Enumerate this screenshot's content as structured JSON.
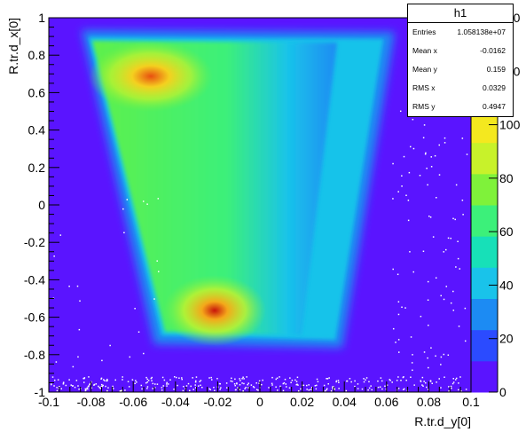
{
  "chart_data": {
    "type": "heatmap",
    "title": "",
    "xlabel": "R.tr.d_y[0]",
    "ylabel": "R.tr.d_x[0]",
    "xlim": [
      -0.1,
      0.1
    ],
    "ylim": [
      -1,
      1
    ],
    "zlim": [
      0,
      140
    ],
    "x_ticks": [
      "-0.1",
      "-0.08",
      "-0.06",
      "-0.04",
      "-0.02",
      "0",
      "0.02",
      "0.04",
      "0.06",
      "0.08",
      "0.1"
    ],
    "y_ticks": [
      "-1",
      "-0.8",
      "-0.6",
      "-0.4",
      "-0.2",
      "0",
      "0.2",
      "0.4",
      "0.6",
      "0.8",
      "1"
    ],
    "z_ticks": [
      "0",
      "20",
      "40",
      "60",
      "80",
      "100",
      "120",
      "140"
    ],
    "background_color": "#5a14ff",
    "palette": [
      "#5a14ff",
      "#2b4bff",
      "#1c8bf3",
      "#19c3ea",
      "#17e0b8",
      "#3cf07a",
      "#7ff23a",
      "#c8f22a",
      "#f4e81f",
      "#f4a81a",
      "#e85010",
      "#c8140a"
    ],
    "density_regions": [
      {
        "shape": "trapezoid",
        "x_top": [
          -0.092,
          0.058
        ],
        "x_bottom": [
          -0.053,
          0.035
        ],
        "y_range": [
          -0.74,
          0.86
        ],
        "peak": 140
      },
      {
        "shape": "hotspot",
        "center": [
          -0.018,
          -0.61
        ],
        "peak": 140
      },
      {
        "shape": "hotspot",
        "center": [
          -0.055,
          0.73
        ],
        "peak": 140
      }
    ],
    "stats": {
      "title": "h1",
      "entries": {
        "label": "Entries",
        "value": "1.058138e+07"
      },
      "mean_x": {
        "label": "Mean x",
        "value": "-0.0162"
      },
      "mean_y": {
        "label": "Mean y",
        "value": "0.159"
      },
      "rms_x": {
        "label": "RMS x",
        "value": "0.0329"
      },
      "rms_y": {
        "label": "RMS y",
        "value": "0.4947"
      }
    }
  }
}
